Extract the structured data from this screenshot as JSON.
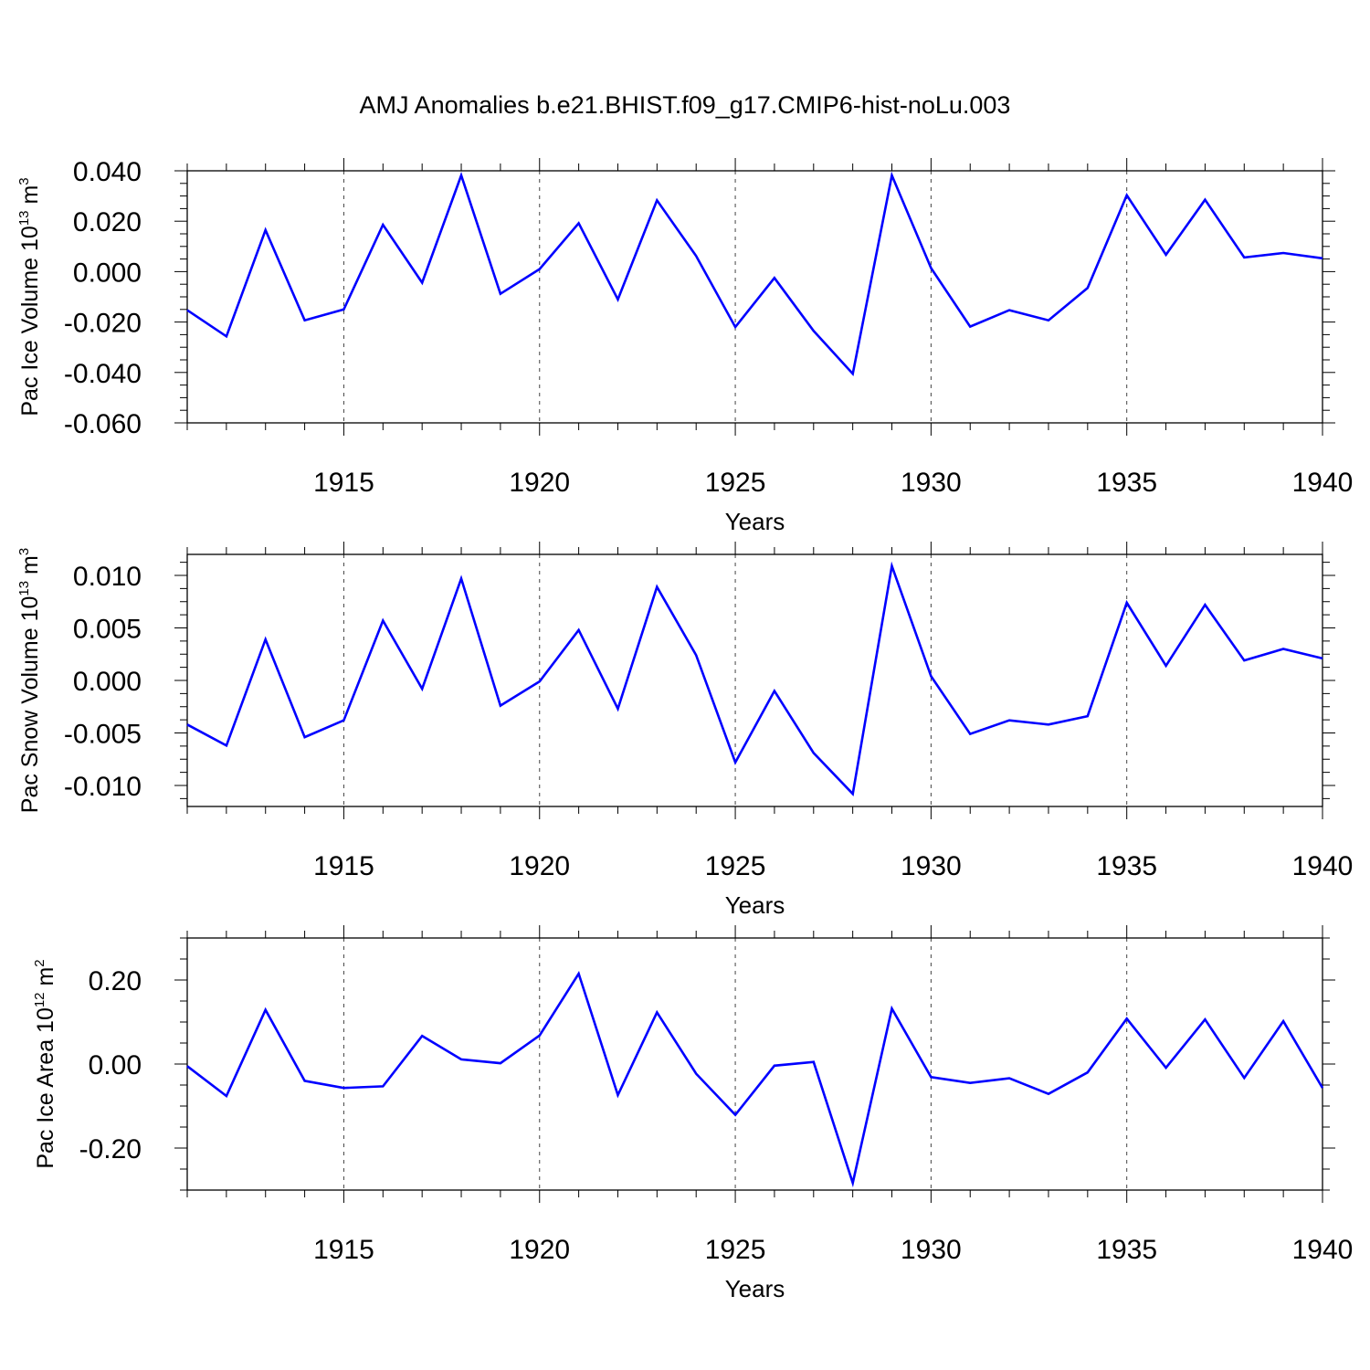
{
  "title": "AMJ Anomalies b.e21.BHIST.f09_g17.CMIP6-hist-noLu.003",
  "colors": {
    "line": "#0000ff",
    "grid": "#444444",
    "frame": "#000000"
  },
  "chart_data": [
    {
      "type": "line",
      "title": "",
      "xlabel": "Years",
      "ylabel": "Pac Ice Volume 10",
      "ylabel_exp": "13",
      "ylabel_unit": " m",
      "ylabel_unit_exp": "3",
      "xlim": [
        1911,
        1940
      ],
      "ylim": [
        -0.06,
        0.04
      ],
      "yticks": [
        0.04,
        0.02,
        0.0,
        -0.02,
        -0.04,
        -0.06
      ],
      "yticklabels": [
        "0.040",
        "0.020",
        "0.000",
        "-0.020",
        "-0.040",
        "-0.060"
      ],
      "xticks": [
        1915,
        1920,
        1925,
        1930,
        1935,
        1940
      ],
      "xticklabels": [
        "1915",
        "1920",
        "1925",
        "1930",
        "1935",
        "1940"
      ],
      "grid": "vertical dashed at x ticks",
      "x": [
        1911,
        1912,
        1913,
        1914,
        1915,
        1916,
        1917,
        1918,
        1919,
        1920,
        1921,
        1922,
        1923,
        1924,
        1925,
        1926,
        1927,
        1928,
        1929,
        1930,
        1931,
        1932,
        1933,
        1934,
        1935,
        1936,
        1937,
        1938,
        1939,
        1940
      ],
      "series": [
        {
          "values": [
            -0.0153,
            -0.0257,
            0.0165,
            -0.0193,
            -0.015,
            0.0186,
            -0.0044,
            0.0382,
            -0.0088,
            0.001,
            0.0192,
            -0.011,
            0.0283,
            0.0062,
            -0.022,
            -0.0025,
            -0.0235,
            -0.0405,
            0.0382,
            0.0014,
            -0.0218,
            -0.0153,
            -0.0193,
            -0.0065,
            0.0303,
            0.0067,
            0.0285,
            0.0056,
            0.0074,
            0.0053
          ]
        }
      ]
    },
    {
      "type": "line",
      "title": "",
      "xlabel": "Years",
      "ylabel": "Pac Snow Volume 10",
      "ylabel_exp": "13",
      "ylabel_unit": " m",
      "ylabel_unit_exp": "3",
      "xlim": [
        1911,
        1940
      ],
      "ylim": [
        -0.012,
        0.012
      ],
      "yticks": [
        0.01,
        0.005,
        0.0,
        -0.005,
        -0.01
      ],
      "yticklabels": [
        "0.010",
        "0.005",
        "0.000",
        "-0.005",
        "-0.010"
      ],
      "xticks": [
        1915,
        1920,
        1925,
        1930,
        1935,
        1940
      ],
      "xticklabels": [
        "1915",
        "1920",
        "1925",
        "1930",
        "1935",
        "1940"
      ],
      "grid": "vertical dashed at x ticks",
      "x": [
        1911,
        1912,
        1913,
        1914,
        1915,
        1916,
        1917,
        1918,
        1919,
        1920,
        1921,
        1922,
        1923,
        1924,
        1925,
        1926,
        1927,
        1928,
        1929,
        1930,
        1931,
        1932,
        1933,
        1934,
        1935,
        1936,
        1937,
        1938,
        1939,
        1940
      ],
      "series": [
        {
          "values": [
            -0.0042,
            -0.0062,
            0.0039,
            -0.0054,
            -0.0038,
            0.0057,
            -0.0008,
            0.0097,
            -0.0024,
            -0.0001,
            0.0048,
            -0.0027,
            0.0089,
            0.0024,
            -0.0078,
            -0.001,
            -0.0069,
            -0.0108,
            0.0109,
            0.0004,
            -0.0051,
            -0.0038,
            -0.0042,
            -0.0034,
            0.0074,
            0.0014,
            0.0072,
            0.0019,
            0.003,
            0.0021
          ]
        }
      ]
    },
    {
      "type": "line",
      "title": "",
      "xlabel": "Years",
      "ylabel": "Pac Ice Area 10",
      "ylabel_exp": "12",
      "ylabel_unit": " m",
      "ylabel_unit_exp": "2",
      "xlim": [
        1911,
        1940
      ],
      "ylim": [
        -0.3,
        0.3
      ],
      "yticks": [
        0.2,
        0.0,
        -0.2
      ],
      "yticklabels": [
        "0.20",
        "0.00",
        "-0.20"
      ],
      "xticks": [
        1915,
        1920,
        1925,
        1930,
        1935,
        1940
      ],
      "xticklabels": [
        "1915",
        "1920",
        "1925",
        "1930",
        "1935",
        "1940"
      ],
      "grid": "vertical dashed at x ticks",
      "x": [
        1911,
        1912,
        1913,
        1914,
        1915,
        1916,
        1917,
        1918,
        1919,
        1920,
        1921,
        1922,
        1923,
        1924,
        1925,
        1926,
        1927,
        1928,
        1929,
        1930,
        1931,
        1932,
        1933,
        1934,
        1935,
        1936,
        1937,
        1938,
        1939,
        1940
      ],
      "series": [
        {
          "values": [
            -0.005,
            -0.076,
            0.129,
            -0.04,
            -0.057,
            -0.053,
            0.067,
            0.011,
            0.002,
            0.068,
            0.215,
            -0.074,
            0.123,
            -0.023,
            -0.121,
            -0.004,
            0.005,
            -0.283,
            0.132,
            -0.031,
            -0.045,
            -0.034,
            -0.071,
            -0.02,
            0.108,
            -0.009,
            0.106,
            -0.033,
            0.102,
            -0.057
          ]
        }
      ]
    }
  ]
}
